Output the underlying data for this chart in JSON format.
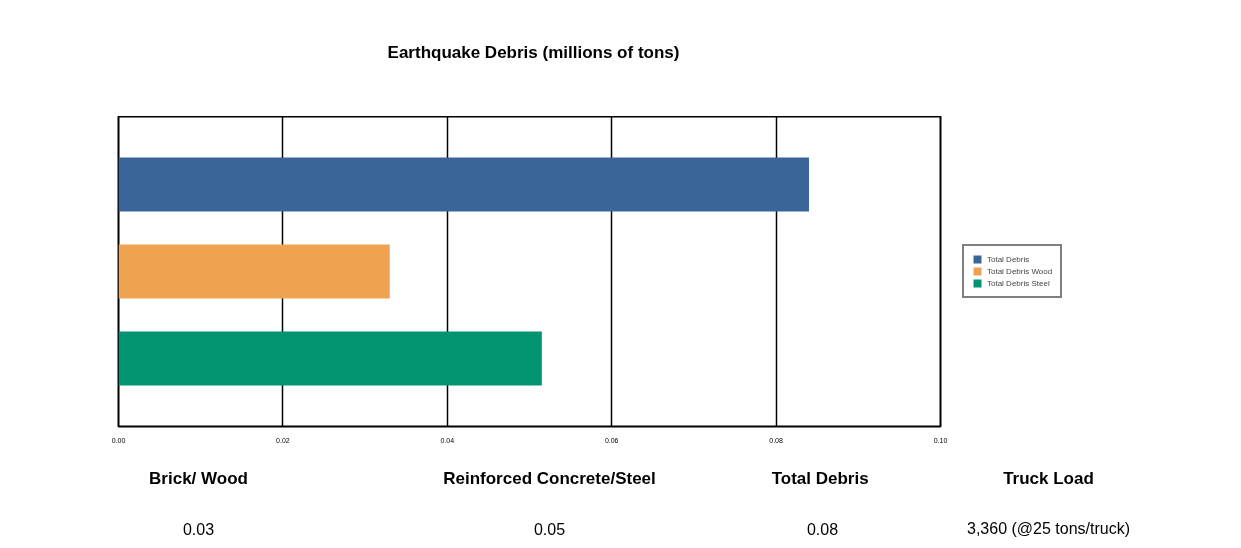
{
  "chart_data": {
    "type": "bar",
    "orientation": "horizontal",
    "title": "Earthquake Debris (millions of tons)",
    "categories": [
      null,
      null,
      null
    ],
    "series": [
      {
        "name": "Total Debris",
        "color": "#3a6598",
        "values": [
          0.084,
          null,
          null
        ]
      },
      {
        "name": "Total Debris Wood",
        "color": "#efa352",
        "values": [
          null,
          0.033,
          null
        ]
      },
      {
        "name": "Total Debris Steel",
        "color": "#029470",
        "values": [
          null,
          null,
          0.0515
        ]
      }
    ],
    "xlim": [
      0,
      0.1
    ],
    "xticks": [
      {
        "value": 0,
        "label": "0.00"
      },
      {
        "value": 0.02,
        "label": "0.02"
      },
      {
        "value": 0.04,
        "label": "0.04"
      },
      {
        "value": 0.06,
        "label": "0.06"
      },
      {
        "value": 0.08,
        "label": "0.08"
      },
      {
        "value": 0.1,
        "label": "0.10"
      }
    ],
    "grid": "x",
    "legend": "right",
    "tick_labels": "x",
    "annotations": [
      "Brick/ Wood",
      "Reinforced Concrete/Steel",
      "Total  Debris",
      "Truck Load",
      "0.03",
      "0.05",
      "0.08",
      "3,360 (@25 tons/truck)"
    ]
  }
}
